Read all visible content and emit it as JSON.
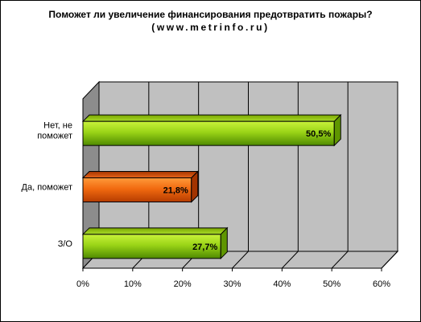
{
  "title": "Поможет ли увеличение финансирования  предотвратить пожары?",
  "subtitle": "(www.metrinfo.ru)",
  "chart_data": {
    "type": "bar",
    "orientation": "horizontal",
    "style": "3d",
    "categories": [
      "Нет, не поможет",
      "Да, поможет",
      "З/О"
    ],
    "category_label_lines": [
      [
        "Нет, не",
        "поможет"
      ],
      [
        "Да, поможет"
      ],
      [
        "З/О"
      ]
    ],
    "values": [
      50.5,
      21.8,
      27.7
    ],
    "value_labels": [
      "50,5%",
      "21,8%",
      "27,7%"
    ],
    "bar_colors": [
      "#86c406",
      "#f05a02",
      "#86c406"
    ],
    "xlim": [
      0,
      60
    ],
    "xticks": [
      0,
      10,
      20,
      30,
      40,
      50,
      60
    ],
    "xtick_labels": [
      "0%",
      "10%",
      "20%",
      "30%",
      "40%",
      "50%",
      "60%"
    ],
    "grid": true,
    "legend": false,
    "wall_color": "#c0c0c0"
  }
}
